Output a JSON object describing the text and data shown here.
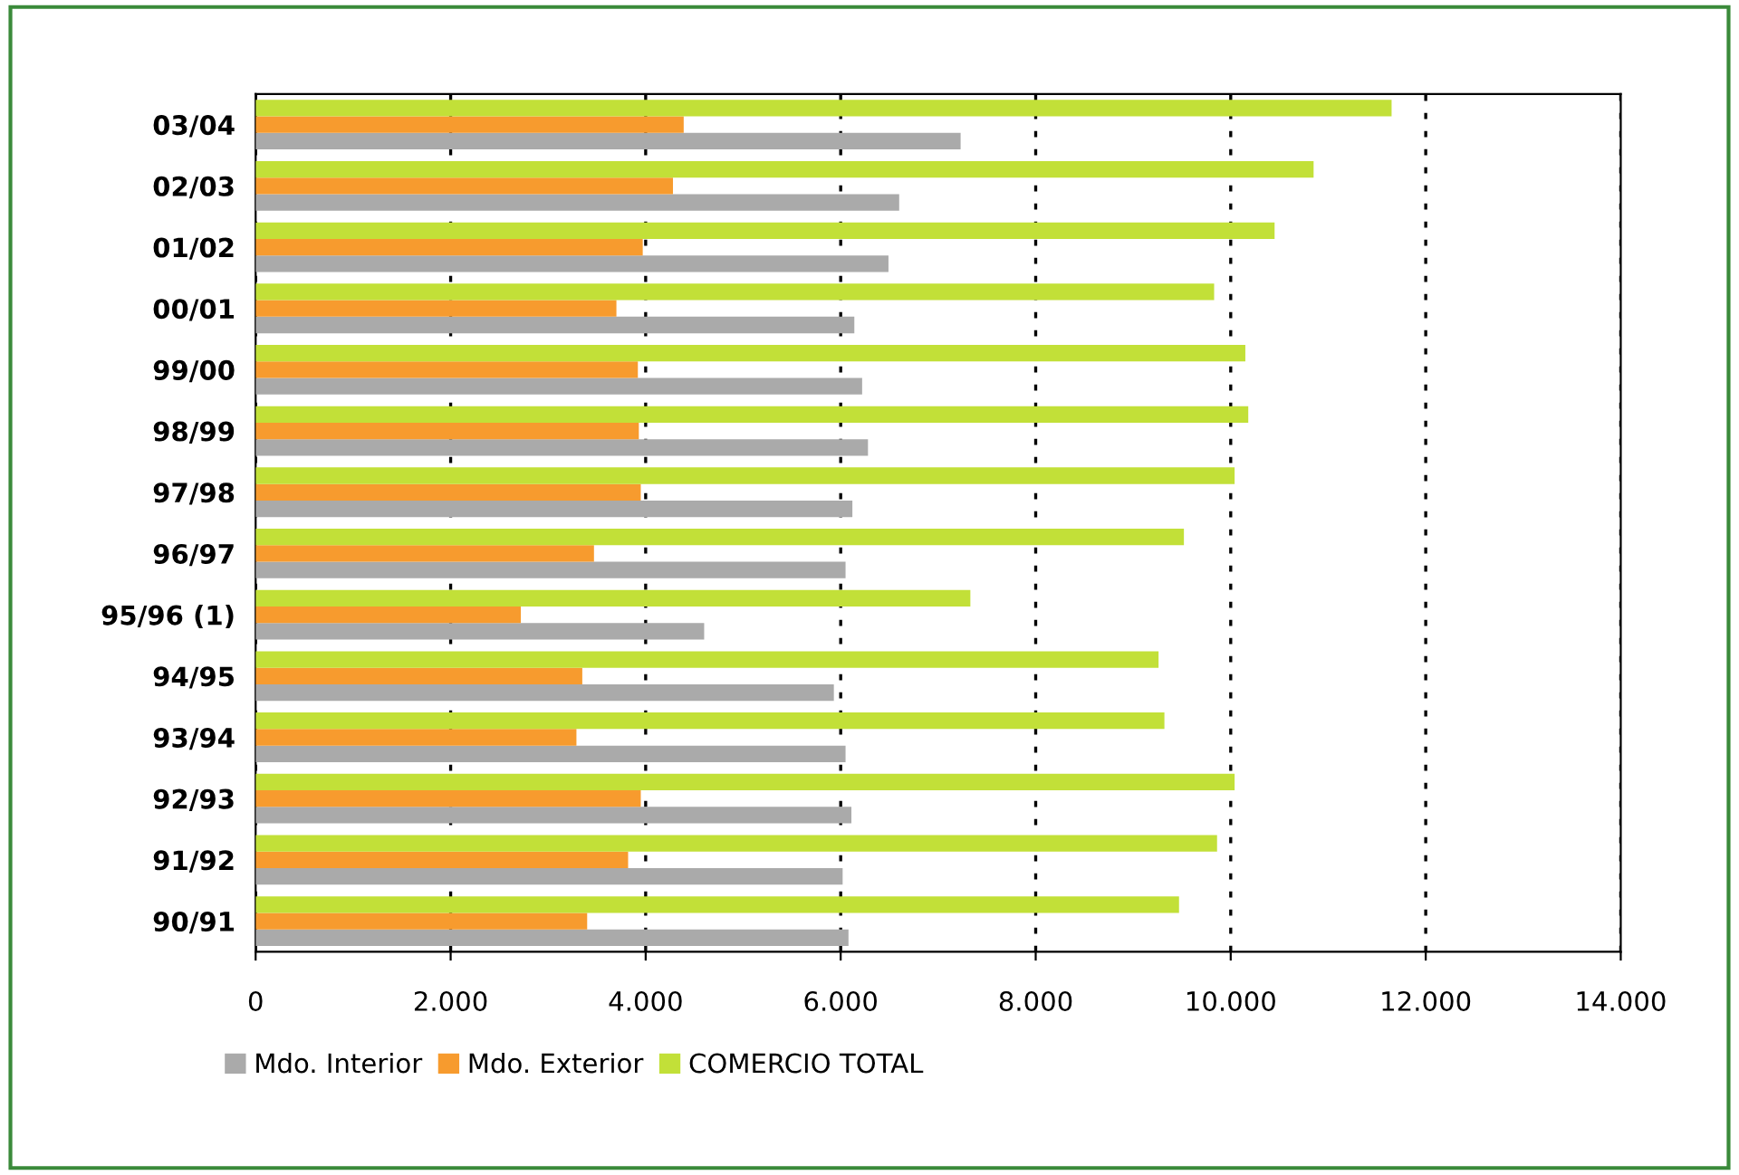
{
  "chart_data": {
    "type": "bar",
    "orientation": "horizontal",
    "categories": [
      "03/04",
      "02/03",
      "01/02",
      "00/01",
      "99/00",
      "98/99",
      "97/98",
      "96/97",
      "95/96 (1)",
      "94/95",
      "93/94",
      "92/93",
      "91/92",
      "90/91"
    ],
    "series": [
      {
        "name": "Mdo. Interior",
        "color": "#aaaaaa",
        "values": [
          7230,
          6600,
          6490,
          6140,
          6220,
          6280,
          6120,
          6050,
          4600,
          5930,
          6050,
          6110,
          6020,
          6080
        ]
      },
      {
        "name": "Mdo. Exterior",
        "color": "#f79b2e",
        "values": [
          4390,
          4280,
          3970,
          3700,
          3920,
          3930,
          3950,
          3470,
          2720,
          3350,
          3290,
          3950,
          3820,
          3400
        ]
      },
      {
        "name": "COMERCIO TOTAL",
        "color": "#c2e038",
        "values": [
          11650,
          10850,
          10450,
          9830,
          10150,
          10180,
          10040,
          9520,
          7330,
          9260,
          9320,
          10040,
          9860,
          9470
        ]
      }
    ],
    "xlim": [
      0,
      14000
    ],
    "xticks": [
      {
        "value": 0,
        "label": "0"
      },
      {
        "value": 2000,
        "label": "2.000"
      },
      {
        "value": 4000,
        "label": "4.000"
      },
      {
        "value": 6000,
        "label": "6.000"
      },
      {
        "value": 8000,
        "label": "8.000"
      },
      {
        "value": 10000,
        "label": "10.000"
      },
      {
        "value": 12000,
        "label": "12.000"
      },
      {
        "value": 14000,
        "label": "14.000"
      }
    ],
    "grid": "x",
    "legend": "bottom left"
  }
}
